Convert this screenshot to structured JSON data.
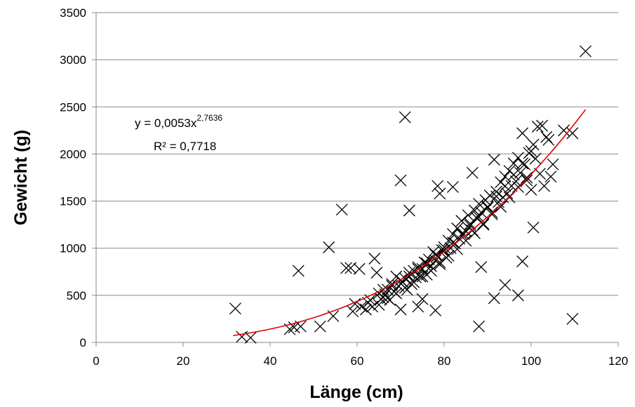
{
  "chart_data": {
    "type": "scatter",
    "title": "",
    "xlabel": "Länge (cm)",
    "ylabel": "Gewicht (g)",
    "xlim": [
      0,
      120
    ],
    "ylim": [
      0,
      3500
    ],
    "xticks": [
      0,
      20,
      40,
      60,
      80,
      100,
      120
    ],
    "yticks": [
      0,
      500,
      1000,
      1500,
      2000,
      2500,
      3000,
      3500
    ],
    "grid": {
      "horizontal": true,
      "vertical": false
    },
    "legend": "none",
    "marker": "x",
    "colors": {
      "points": "#000000",
      "trendline": "#e00000",
      "grid": "#888888"
    },
    "trendline": {
      "type": "power",
      "a": 0.0053,
      "b": 2.7636,
      "x_range": [
        31.5,
        112.5
      ],
      "equation_prefix": "y = 0,0053x",
      "equation_exponent": "2,7636",
      "r_squared_label": "R² = 0,7718"
    },
    "series": [
      {
        "points": [
          [
            32,
            360
          ],
          [
            33.5,
            60
          ],
          [
            35.5,
            50
          ],
          [
            44.5,
            140
          ],
          [
            45.5,
            160
          ],
          [
            46.5,
            760
          ],
          [
            47,
            170
          ],
          [
            51.5,
            170
          ],
          [
            53.5,
            1010
          ],
          [
            54.5,
            280
          ],
          [
            56.5,
            1410
          ],
          [
            57.5,
            790
          ],
          [
            58.5,
            790
          ],
          [
            59,
            330
          ],
          [
            59.5,
            410
          ],
          [
            60.5,
            780
          ],
          [
            61,
            380
          ],
          [
            62,
            350
          ],
          [
            62.5,
            420
          ],
          [
            63,
            450
          ],
          [
            63.5,
            380
          ],
          [
            64,
            890
          ],
          [
            64.5,
            740
          ],
          [
            65,
            520
          ],
          [
            65.5,
            460
          ],
          [
            66,
            480
          ],
          [
            66.5,
            510
          ],
          [
            67,
            560
          ],
          [
            67.5,
            450
          ],
          [
            68,
            620
          ],
          [
            68.5,
            540
          ],
          [
            69,
            700
          ],
          [
            69.5,
            600
          ],
          [
            70,
            1720
          ],
          [
            70,
            350
          ],
          [
            70.5,
            640
          ],
          [
            71,
            2390
          ],
          [
            71,
            680
          ],
          [
            71.5,
            560
          ],
          [
            72,
            1400
          ],
          [
            72,
            740
          ],
          [
            72.5,
            620
          ],
          [
            73,
            760
          ],
          [
            73.5,
            690
          ],
          [
            74,
            800
          ],
          [
            74,
            380
          ],
          [
            74.5,
            700
          ],
          [
            75,
            780
          ],
          [
            75,
            460
          ],
          [
            75.5,
            850
          ],
          [
            76,
            720
          ],
          [
            76.5,
            880
          ],
          [
            77,
            810
          ],
          [
            77.5,
            960
          ],
          [
            78,
            340
          ],
          [
            78,
            870
          ],
          [
            78.5,
            1660
          ],
          [
            78.5,
            920
          ],
          [
            79,
            1580
          ],
          [
            79,
            830
          ],
          [
            79.5,
            980
          ],
          [
            80,
            1010
          ],
          [
            80.5,
            900
          ],
          [
            81,
            1080
          ],
          [
            81.5,
            1000
          ],
          [
            82,
            1650
          ],
          [
            82,
            1150
          ],
          [
            82.5,
            1050
          ],
          [
            83,
            1210
          ],
          [
            83.5,
            1100
          ],
          [
            84,
            1290
          ],
          [
            84.5,
            1150
          ],
          [
            85,
            1180
          ],
          [
            85.5,
            1350
          ],
          [
            86,
            1260
          ],
          [
            86.5,
            1800
          ],
          [
            86.5,
            1190
          ],
          [
            87,
            1400
          ],
          [
            87.5,
            1320
          ],
          [
            88,
            170
          ],
          [
            88,
            1470
          ],
          [
            88.5,
            800
          ],
          [
            88.5,
            1380
          ],
          [
            89,
            1250
          ],
          [
            89.5,
            1510
          ],
          [
            90,
            1430
          ],
          [
            90.5,
            1560
          ],
          [
            91,
            1380
          ],
          [
            91.5,
            1940
          ],
          [
            91.5,
            470
          ],
          [
            92,
            1600
          ],
          [
            92.5,
            1490
          ],
          [
            93,
            1700
          ],
          [
            93.5,
            1540
          ],
          [
            94,
            610
          ],
          [
            94,
            1760
          ],
          [
            94.5,
            1580
          ],
          [
            95,
            1820
          ],
          [
            95.5,
            1660
          ],
          [
            96,
            1900
          ],
          [
            96.5,
            1710
          ],
          [
            97,
            500
          ],
          [
            97,
            1960
          ],
          [
            97.5,
            1800
          ],
          [
            98,
            860
          ],
          [
            98,
            2220
          ],
          [
            98.5,
            1890
          ],
          [
            99,
            1720
          ],
          [
            99.5,
            2010
          ],
          [
            100,
            1620
          ],
          [
            100.5,
            1220
          ],
          [
            100.5,
            2100
          ],
          [
            101,
            1950
          ],
          [
            101.5,
            2290
          ],
          [
            102,
            1790
          ],
          [
            102.5,
            2300
          ],
          [
            103,
            1660
          ],
          [
            103.5,
            2180
          ],
          [
            104,
            2150
          ],
          [
            104.5,
            1760
          ],
          [
            105,
            1890
          ],
          [
            107.5,
            2250
          ],
          [
            109.5,
            2220
          ],
          [
            109.5,
            250
          ],
          [
            112.5,
            3090
          ],
          [
            66,
            560
          ],
          [
            68,
            600
          ],
          [
            70,
            660
          ],
          [
            72,
            700
          ],
          [
            74,
            780
          ],
          [
            76,
            840
          ],
          [
            78,
            930
          ],
          [
            80,
            980
          ],
          [
            82,
            1060
          ],
          [
            84,
            1150
          ],
          [
            86,
            1240
          ],
          [
            88,
            1330
          ],
          [
            90,
            1440
          ],
          [
            92,
            1550
          ],
          [
            94,
            1660
          ],
          [
            96,
            1780
          ],
          [
            98,
            1900
          ],
          [
            100,
            2030
          ],
          [
            65,
            400
          ],
          [
            67,
            470
          ],
          [
            69,
            520
          ],
          [
            71,
            580
          ],
          [
            73,
            640
          ],
          [
            75,
            700
          ],
          [
            77,
            760
          ],
          [
            79,
            850
          ],
          [
            81,
            920
          ],
          [
            83,
            990
          ],
          [
            85,
            1080
          ],
          [
            87,
            1160
          ],
          [
            89,
            1260
          ],
          [
            91,
            1360
          ],
          [
            93,
            1440
          ],
          [
            95,
            1540
          ],
          [
            97,
            1650
          ],
          [
            99,
            1750
          ]
        ]
      }
    ]
  }
}
